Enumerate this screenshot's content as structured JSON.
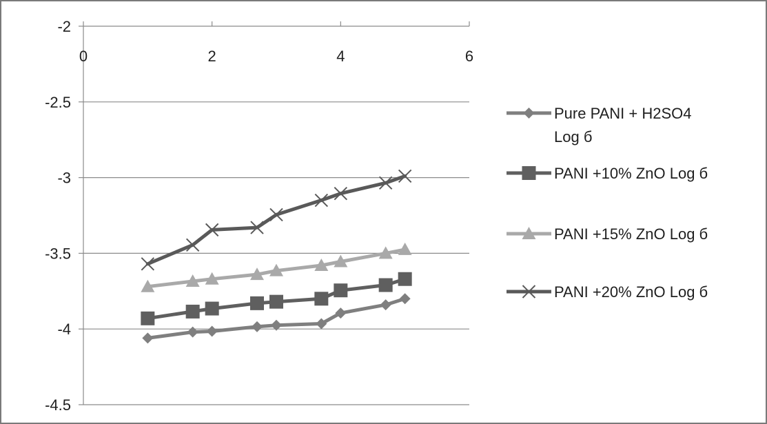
{
  "chart_data": {
    "type": "line",
    "title": "",
    "xlabel": "",
    "ylabel": "",
    "xlim": [
      0,
      6
    ],
    "ylim": [
      -4.5,
      -2
    ],
    "x_ticks": [
      "0",
      "2",
      "4",
      "6"
    ],
    "y_ticks": [
      "-2",
      "-2.5",
      "-3",
      "-3.5",
      "-4",
      "-4.5"
    ],
    "grid": "horizontal",
    "legend_position": "right",
    "series": [
      {
        "name_lines": [
          "Pure PANI +  H2SO4",
          "Log  б"
        ],
        "marker": "diamond",
        "color": "#7f7f7f",
        "points": [
          [
            1.0,
            -4.06
          ],
          [
            1.7,
            -4.02
          ],
          [
            2.0,
            -4.015
          ],
          [
            2.7,
            -3.985
          ],
          [
            3.0,
            -3.975
          ],
          [
            3.7,
            -3.965
          ],
          [
            4.0,
            -3.895
          ],
          [
            4.7,
            -3.84
          ],
          [
            5.0,
            -3.8
          ]
        ]
      },
      {
        "name_lines": [
          "PANI +10% ZnO   Log  б"
        ],
        "marker": "square",
        "color": "#5f5f5f",
        "points": [
          [
            1.0,
            -3.93
          ],
          [
            1.7,
            -3.885
          ],
          [
            2.0,
            -3.865
          ],
          [
            2.7,
            -3.83
          ],
          [
            3.0,
            -3.82
          ],
          [
            3.7,
            -3.8
          ],
          [
            4.0,
            -3.745
          ],
          [
            4.7,
            -3.71
          ],
          [
            5.0,
            -3.67
          ]
        ]
      },
      {
        "name_lines": [
          "PANI +15% ZnO Log  б"
        ],
        "marker": "triangle",
        "color": "#a9a9a9",
        "points": [
          [
            1.0,
            -3.72
          ],
          [
            1.7,
            -3.685
          ],
          [
            2.0,
            -3.67
          ],
          [
            2.7,
            -3.64
          ],
          [
            3.0,
            -3.615
          ],
          [
            3.7,
            -3.58
          ],
          [
            4.0,
            -3.555
          ],
          [
            4.7,
            -3.5
          ],
          [
            5.0,
            -3.475
          ]
        ]
      },
      {
        "name_lines": [
          "PANI +20%  ZnO Log  б"
        ],
        "marker": "x",
        "color": "#595959",
        "points": [
          [
            1.0,
            -3.57
          ],
          [
            1.7,
            -3.445
          ],
          [
            2.0,
            -3.345
          ],
          [
            2.7,
            -3.33
          ],
          [
            3.0,
            -3.245
          ],
          [
            3.7,
            -3.15
          ],
          [
            4.0,
            -3.105
          ],
          [
            4.7,
            -3.035
          ],
          [
            5.0,
            -2.99
          ]
        ]
      }
    ]
  }
}
